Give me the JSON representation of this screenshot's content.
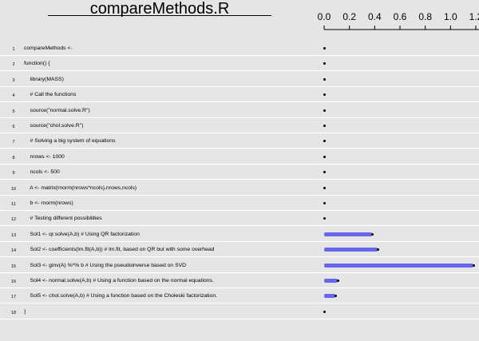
{
  "title": "compareMethods.R",
  "axis": {
    "ticks": [
      "0.0",
      "0.2",
      "0.4",
      "0.6",
      "0.8",
      "1.0",
      "1.2"
    ],
    "max": 1.2
  },
  "colors": {
    "bar": "#6666ee",
    "background": "#e5e5e5",
    "grid": "#ffffff"
  },
  "lines": [
    {
      "num": "1",
      "code": "compareMethods <-",
      "time": 0
    },
    {
      "num": "2",
      "code": "function() {",
      "time": 0
    },
    {
      "num": "3",
      "code": "    library(MASS)",
      "time": 0
    },
    {
      "num": "4",
      "code": "    # Call the functions",
      "time": 0
    },
    {
      "num": "5",
      "code": "    source(\"normal.solve.R\")",
      "time": 0
    },
    {
      "num": "6",
      "code": "    source(\"chol.solve.R\")",
      "time": 0
    },
    {
      "num": "7",
      "code": "    # Solving a big system of equations",
      "time": 0
    },
    {
      "num": "8",
      "code": "    nrows <- 1000",
      "time": 0
    },
    {
      "num": "9",
      "code": "    ncols <- 500",
      "time": 0
    },
    {
      "num": "10",
      "code": "    A <- matrix(rnorm(nrows*ncols),nrows,ncols)",
      "time": 0
    },
    {
      "num": "11",
      "code": "    b <- rnorm(nrows)",
      "time": 0
    },
    {
      "num": "12",
      "code": "    # Testing different possibilities",
      "time": 0
    },
    {
      "num": "13",
      "code": "    Sol1 <- qr.solve(A,b) # Using QR factorization",
      "time": 0.38
    },
    {
      "num": "14",
      "code": "    Sol2 <- coefficients(lm.fit(A,b)) # lm.fit, based on QR but with some overhead",
      "time": 0.42
    },
    {
      "num": "15",
      "code": "    Sol3 <- ginv(A) %*% b # Using the pseudoinverse based on SVD",
      "time": 1.18
    },
    {
      "num": "16",
      "code": "    Sol4 <- normal.solve(A,b) # Using a function based on the normal equations.",
      "time": 0.11
    },
    {
      "num": "17",
      "code": "    Sol5 <- chol.solve(A,b) # Using a function based on the Choleski factorization.",
      "time": 0.09
    },
    {
      "num": "18",
      "code": "}",
      "time": 0
    }
  ]
}
